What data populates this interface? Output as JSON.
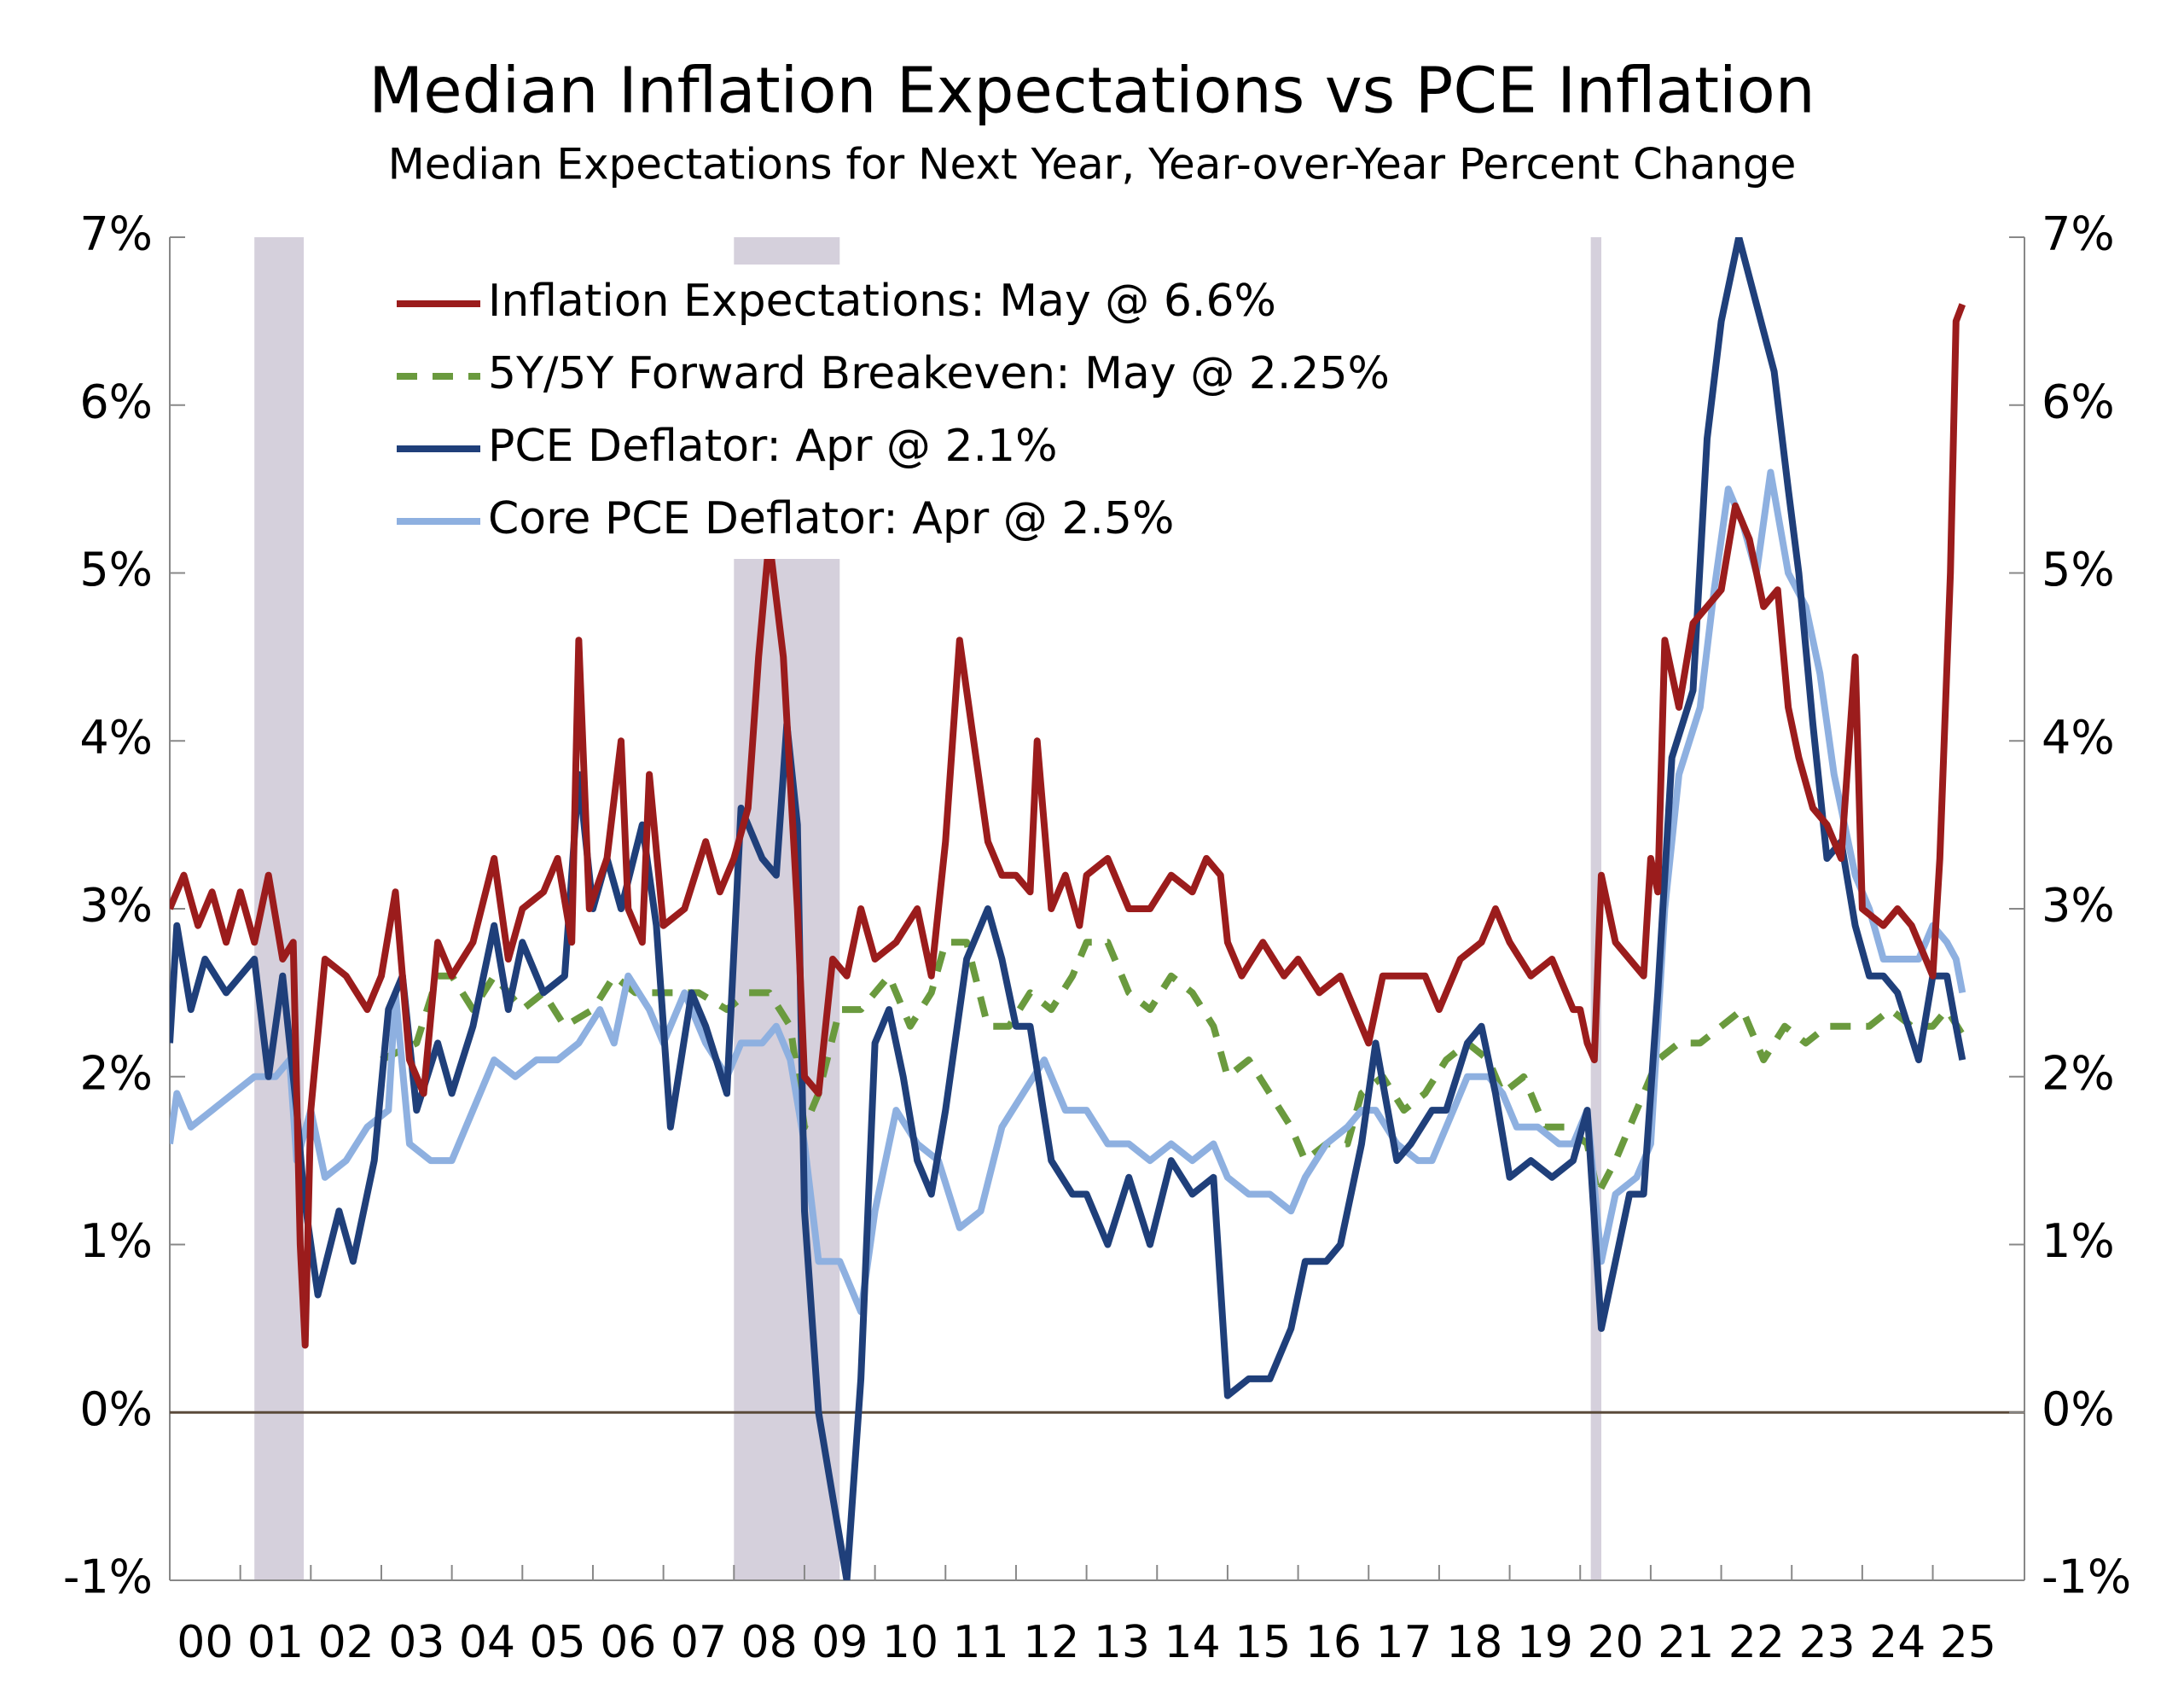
{
  "chart_data": {
    "type": "line",
    "title": "Median Inflation Expectations vs PCE Inflation",
    "subtitle": "Median Expectations for Next Year, Year-over-Year Percent Change",
    "xlim": [
      2000,
      2026.3
    ],
    "xticks": [
      {
        "value": 2000,
        "label": "00"
      },
      {
        "value": 2001,
        "label": "01"
      },
      {
        "value": 2002,
        "label": "02"
      },
      {
        "value": 2003,
        "label": "03"
      },
      {
        "value": 2004,
        "label": "04"
      },
      {
        "value": 2005,
        "label": "05"
      },
      {
        "value": 2006,
        "label": "06"
      },
      {
        "value": 2007,
        "label": "07"
      },
      {
        "value": 2008,
        "label": "08"
      },
      {
        "value": 2009,
        "label": "09"
      },
      {
        "value": 2010,
        "label": "10"
      },
      {
        "value": 2011,
        "label": "11"
      },
      {
        "value": 2012,
        "label": "12"
      },
      {
        "value": 2013,
        "label": "13"
      },
      {
        "value": 2014,
        "label": "14"
      },
      {
        "value": 2015,
        "label": "15"
      },
      {
        "value": 2016,
        "label": "16"
      },
      {
        "value": 2017,
        "label": "17"
      },
      {
        "value": 2018,
        "label": "18"
      },
      {
        "value": 2019,
        "label": "19"
      },
      {
        "value": 2020,
        "label": "20"
      },
      {
        "value": 2021,
        "label": "21"
      },
      {
        "value": 2022,
        "label": "22"
      },
      {
        "value": 2023,
        "label": "23"
      },
      {
        "value": 2024,
        "label": "24"
      },
      {
        "value": 2025,
        "label": "25"
      }
    ],
    "ylim": [
      -1,
      7
    ],
    "yticks": [
      {
        "value": -1,
        "label": "-1%"
      },
      {
        "value": 0,
        "label": "0%"
      },
      {
        "value": 1,
        "label": "1%"
      },
      {
        "value": 2,
        "label": "2%"
      },
      {
        "value": 3,
        "label": "3%"
      },
      {
        "value": 4,
        "label": "4%"
      },
      {
        "value": 5,
        "label": "5%"
      },
      {
        "value": 6,
        "label": "6%"
      },
      {
        "value": 7,
        "label": "7%"
      }
    ],
    "y2lim": [
      -1,
      7
    ],
    "y2ticks": [
      {
        "value": -1,
        "label": "-1%"
      },
      {
        "value": 0,
        "label": "0%"
      },
      {
        "value": 1,
        "label": "1%"
      },
      {
        "value": 2,
        "label": "2%"
      },
      {
        "value": 3,
        "label": "3%"
      },
      {
        "value": 4,
        "label": "4%"
      },
      {
        "value": 5,
        "label": "5%"
      },
      {
        "value": 6,
        "label": "6%"
      },
      {
        "value": 7,
        "label": "7%"
      }
    ],
    "recessions": [
      [
        2001.2,
        2001.9
      ],
      [
        2008.0,
        2009.5
      ],
      [
        2020.15,
        2020.3
      ]
    ],
    "recession_color": "#d5d0dc",
    "legend": "upper left",
    "series": [
      {
        "name": "Inflation Expectations: May @ 6.6%",
        "color": "#9b1c1c",
        "style": "solid",
        "x": [
          2000,
          2000.2,
          2000.4,
          2000.6,
          2000.8,
          2001.0,
          2001.2,
          2001.4,
          2001.6,
          2001.75,
          2001.85,
          2001.92,
          2002.0,
          2002.2,
          2002.5,
          2002.8,
          2003.0,
          2003.2,
          2003.4,
          2003.6,
          2003.8,
          2004.0,
          2004.3,
          2004.6,
          2004.8,
          2005.0,
          2005.3,
          2005.5,
          2005.7,
          2005.8,
          2005.95,
          2006.2,
          2006.4,
          2006.5,
          2006.7,
          2006.8,
          2007.0,
          2007.3,
          2007.6,
          2007.8,
          2008.0,
          2008.2,
          2008.35,
          2008.5,
          2008.7,
          2008.9,
          2009.0,
          2009.2,
          2009.4,
          2009.6,
          2009.8,
          2010.0,
          2010.3,
          2010.6,
          2010.8,
          2011.0,
          2011.2,
          2011.4,
          2011.6,
          2011.8,
          2012.0,
          2012.2,
          2012.3,
          2012.5,
          2012.7,
          2012.9,
          2013.0,
          2013.3,
          2013.6,
          2013.9,
          2014.2,
          2014.5,
          2014.7,
          2014.9,
          2015.0,
          2015.2,
          2015.5,
          2015.8,
          2016.0,
          2016.3,
          2016.6,
          2016.8,
          2017.0,
          2017.2,
          2017.5,
          2017.8,
          2018.0,
          2018.3,
          2018.6,
          2018.8,
          2019.0,
          2019.3,
          2019.6,
          2019.9,
          2020.0,
          2020.1,
          2020.2,
          2020.3,
          2020.5,
          2020.7,
          2020.9,
          2021.0,
          2021.1,
          2021.2,
          2021.4,
          2021.6,
          2021.8,
          2022.0,
          2022.2,
          2022.4,
          2022.6,
          2022.8,
          2022.95,
          2023.1,
          2023.3,
          2023.5,
          2023.7,
          2023.9,
          2024.0,
          2024.3,
          2024.5,
          2024.7,
          2024.9,
          2025.0,
          2025.1,
          2025.25,
          2025.33,
          2025.42
        ],
        "values": [
          3.0,
          3.2,
          2.9,
          3.1,
          2.8,
          3.1,
          2.8,
          3.2,
          2.7,
          2.8,
          1.0,
          0.4,
          1.8,
          2.7,
          2.6,
          2.4,
          2.6,
          3.1,
          2.1,
          1.9,
          2.8,
          2.6,
          2.8,
          3.3,
          2.7,
          3.0,
          3.1,
          3.3,
          2.8,
          4.6,
          3.0,
          3.3,
          4.0,
          3.0,
          2.8,
          3.8,
          2.9,
          3.0,
          3.4,
          3.1,
          3.3,
          3.6,
          4.5,
          5.2,
          4.5,
          3.0,
          2.0,
          1.9,
          2.7,
          2.6,
          3.0,
          2.7,
          2.8,
          3.0,
          2.6,
          3.4,
          4.6,
          4.0,
          3.4,
          3.2,
          3.2,
          3.1,
          4.0,
          3.0,
          3.2,
          2.9,
          3.2,
          3.3,
          3.0,
          3.0,
          3.2,
          3.1,
          3.3,
          3.2,
          2.8,
          2.6,
          2.8,
          2.6,
          2.7,
          2.5,
          2.6,
          2.4,
          2.2,
          2.6,
          2.6,
          2.6,
          2.4,
          2.7,
          2.8,
          3.0,
          2.8,
          2.6,
          2.7,
          2.4,
          2.4,
          2.2,
          2.1,
          3.2,
          2.8,
          2.7,
          2.6,
          3.3,
          3.1,
          4.6,
          4.2,
          4.7,
          4.8,
          4.9,
          5.4,
          5.2,
          4.8,
          4.9,
          4.2,
          3.9,
          3.6,
          3.5,
          3.3,
          4.5,
          3.0,
          2.9,
          3.0,
          2.9,
          2.7,
          2.6,
          3.3,
          5.0,
          6.5,
          6.6
        ]
      },
      {
        "name": "5Y/5Y Forward Breakeven: May @ 2.25%",
        "color": "#6a9a3e",
        "style": "dashed",
        "x": [
          2003.0,
          2003.5,
          2003.8,
          2004.0,
          2004.3,
          2004.6,
          2005.0,
          2005.3,
          2005.6,
          2006.0,
          2006.3,
          2006.6,
          2007.0,
          2007.5,
          2007.9,
          2008.2,
          2008.5,
          2008.8,
          2009.0,
          2009.2,
          2009.5,
          2009.8,
          2010.2,
          2010.5,
          2010.8,
          2011.0,
          2011.3,
          2011.6,
          2011.9,
          2012.2,
          2012.5,
          2012.8,
          2013.0,
          2013.3,
          2013.6,
          2013.9,
          2014.2,
          2014.5,
          2014.8,
          2015.0,
          2015.3,
          2015.6,
          2015.9,
          2016.1,
          2016.4,
          2016.7,
          2016.9,
          2017.2,
          2017.5,
          2017.8,
          2018.1,
          2018.4,
          2018.7,
          2018.9,
          2019.2,
          2019.5,
          2019.8,
          2020.1,
          2020.25,
          2020.5,
          2020.8,
          2021.1,
          2021.4,
          2021.7,
          2022.0,
          2022.3,
          2022.6,
          2022.9,
          2023.2,
          2023.5,
          2023.8,
          2024.1,
          2024.4,
          2024.7,
          2025.0,
          2025.2,
          2025.42
        ],
        "values": [
          2.1,
          2.2,
          2.6,
          2.6,
          2.4,
          2.6,
          2.4,
          2.5,
          2.3,
          2.4,
          2.6,
          2.5,
          2.5,
          2.5,
          2.4,
          2.5,
          2.5,
          2.3,
          1.7,
          1.9,
          2.4,
          2.4,
          2.6,
          2.3,
          2.5,
          2.8,
          2.8,
          2.3,
          2.3,
          2.5,
          2.4,
          2.6,
          2.8,
          2.8,
          2.5,
          2.4,
          2.6,
          2.5,
          2.3,
          2.0,
          2.1,
          1.9,
          1.7,
          1.5,
          1.6,
          1.6,
          1.9,
          2.0,
          1.8,
          1.9,
          2.1,
          2.2,
          2.1,
          1.9,
          2.0,
          1.7,
          1.7,
          1.6,
          1.3,
          1.5,
          1.8,
          2.1,
          2.2,
          2.2,
          2.3,
          2.4,
          2.1,
          2.3,
          2.2,
          2.3,
          2.3,
          2.3,
          2.4,
          2.3,
          2.3,
          2.4,
          2.25
        ]
      },
      {
        "name": "PCE Deflator: Apr @ 2.1%",
        "color": "#1f3f7a",
        "style": "solid",
        "x": [
          2000,
          2000.1,
          2000.3,
          2000.5,
          2000.8,
          2001.0,
          2001.2,
          2001.4,
          2001.6,
          2001.8,
          2001.9,
          2002.1,
          2002.4,
          2002.6,
          2002.9,
          2003.1,
          2003.3,
          2003.5,
          2003.8,
          2004.0,
          2004.3,
          2004.6,
          2004.8,
          2005.0,
          2005.3,
          2005.6,
          2005.8,
          2006.0,
          2006.2,
          2006.4,
          2006.7,
          2006.9,
          2007.1,
          2007.4,
          2007.6,
          2007.9,
          2008.1,
          2008.4,
          2008.6,
          2008.75,
          2008.9,
          2009.0,
          2009.2,
          2009.4,
          2009.6,
          2009.8,
          2010.0,
          2010.2,
          2010.4,
          2010.6,
          2010.8,
          2011.0,
          2011.3,
          2011.6,
          2011.8,
          2012.0,
          2012.2,
          2012.5,
          2012.8,
          2013.0,
          2013.3,
          2013.6,
          2013.9,
          2014.2,
          2014.5,
          2014.8,
          2015.0,
          2015.3,
          2015.6,
          2015.9,
          2016.1,
          2016.4,
          2016.6,
          2016.9,
          2017.1,
          2017.4,
          2017.6,
          2017.9,
          2018.1,
          2018.4,
          2018.6,
          2018.8,
          2019.0,
          2019.3,
          2019.6,
          2019.9,
          2020.1,
          2020.3,
          2020.5,
          2020.7,
          2020.9,
          2021.1,
          2021.3,
          2021.6,
          2021.8,
          2022.0,
          2022.25,
          2022.5,
          2022.75,
          2022.95,
          2023.1,
          2023.3,
          2023.5,
          2023.7,
          2023.9,
          2024.1,
          2024.3,
          2024.5,
          2024.8,
          2025.0,
          2025.2,
          2025.33,
          2025.42
        ],
        "values": [
          2.2,
          2.9,
          2.4,
          2.7,
          2.5,
          2.6,
          2.7,
          2.0,
          2.6,
          1.8,
          1.3,
          0.7,
          1.2,
          0.9,
          1.5,
          2.4,
          2.6,
          1.8,
          2.2,
          1.9,
          2.3,
          2.9,
          2.4,
          2.8,
          2.5,
          2.6,
          3.8,
          3.0,
          3.3,
          3.0,
          3.5,
          2.9,
          1.7,
          2.5,
          2.3,
          1.9,
          3.6,
          3.3,
          3.2,
          4.1,
          3.5,
          1.2,
          0.0,
          -0.5,
          -1.0,
          0.2,
          2.2,
          2.4,
          2.0,
          1.5,
          1.3,
          1.8,
          2.7,
          3.0,
          2.7,
          2.3,
          2.3,
          1.5,
          1.3,
          1.3,
          1.0,
          1.4,
          1.0,
          1.5,
          1.3,
          1.4,
          0.1,
          0.2,
          0.2,
          0.5,
          0.9,
          0.9,
          1.0,
          1.6,
          2.2,
          1.5,
          1.6,
          1.8,
          1.8,
          2.2,
          2.3,
          1.9,
          1.4,
          1.5,
          1.4,
          1.5,
          1.8,
          0.5,
          0.9,
          1.3,
          1.3,
          2.5,
          3.9,
          4.3,
          5.8,
          6.5,
          7.0,
          6.6,
          6.2,
          5.5,
          5.0,
          4.1,
          3.3,
          3.4,
          2.9,
          2.6,
          2.6,
          2.5,
          2.1,
          2.6,
          2.6,
          2.3,
          2.1
        ]
      },
      {
        "name": "Core PCE Deflator: Apr @ 2.5%",
        "color": "#8eb0e0",
        "style": "solid",
        "x": [
          2000,
          2000.1,
          2000.3,
          2000.6,
          2000.9,
          2001.2,
          2001.5,
          2001.7,
          2001.8,
          2002.0,
          2002.2,
          2002.5,
          2002.8,
          2003.1,
          2003.2,
          2003.4,
          2003.7,
          2004.0,
          2004.3,
          2004.6,
          2004.9,
          2005.2,
          2005.5,
          2005.8,
          2006.1,
          2006.3,
          2006.5,
          2006.8,
          2007.0,
          2007.3,
          2007.6,
          2007.9,
          2008.1,
          2008.4,
          2008.6,
          2008.8,
          2009.0,
          2009.2,
          2009.5,
          2009.8,
          2010.0,
          2010.3,
          2010.6,
          2010.9,
          2011.2,
          2011.5,
          2011.8,
          2012.1,
          2012.4,
          2012.7,
          2013.0,
          2013.3,
          2013.6,
          2013.9,
          2014.2,
          2014.5,
          2014.8,
          2015.0,
          2015.3,
          2015.6,
          2015.9,
          2016.1,
          2016.4,
          2016.7,
          2016.9,
          2017.1,
          2017.4,
          2017.7,
          2017.9,
          2018.1,
          2018.4,
          2018.7,
          2018.9,
          2019.1,
          2019.4,
          2019.7,
          2019.9,
          2020.1,
          2020.3,
          2020.5,
          2020.8,
          2021.0,
          2021.2,
          2021.4,
          2021.7,
          2021.9,
          2022.1,
          2022.3,
          2022.5,
          2022.7,
          2022.95,
          2023.2,
          2023.4,
          2023.6,
          2023.9,
          2024.1,
          2024.3,
          2024.5,
          2024.8,
          2025.0,
          2025.2,
          2025.33,
          2025.42
        ],
        "values": [
          1.6,
          1.9,
          1.7,
          1.8,
          1.9,
          2.0,
          2.0,
          2.1,
          1.5,
          1.8,
          1.4,
          1.5,
          1.7,
          1.8,
          2.5,
          1.6,
          1.5,
          1.5,
          1.8,
          2.1,
          2.0,
          2.1,
          2.1,
          2.2,
          2.4,
          2.2,
          2.6,
          2.4,
          2.2,
          2.5,
          2.2,
          2.0,
          2.2,
          2.2,
          2.3,
          2.1,
          1.6,
          0.9,
          0.9,
          0.6,
          1.2,
          1.8,
          1.6,
          1.5,
          1.1,
          1.2,
          1.7,
          1.9,
          2.1,
          1.8,
          1.8,
          1.6,
          1.6,
          1.5,
          1.6,
          1.5,
          1.6,
          1.4,
          1.3,
          1.3,
          1.2,
          1.4,
          1.6,
          1.7,
          1.8,
          1.8,
          1.6,
          1.5,
          1.5,
          1.7,
          2.0,
          2.0,
          1.9,
          1.7,
          1.7,
          1.6,
          1.6,
          1.8,
          0.9,
          1.3,
          1.4,
          1.6,
          3.0,
          3.8,
          4.2,
          4.9,
          5.5,
          5.3,
          5.0,
          5.6,
          5.0,
          4.8,
          4.4,
          3.8,
          3.2,
          3.0,
          2.7,
          2.7,
          2.7,
          2.9,
          2.8,
          2.7,
          2.5
        ]
      }
    ]
  }
}
